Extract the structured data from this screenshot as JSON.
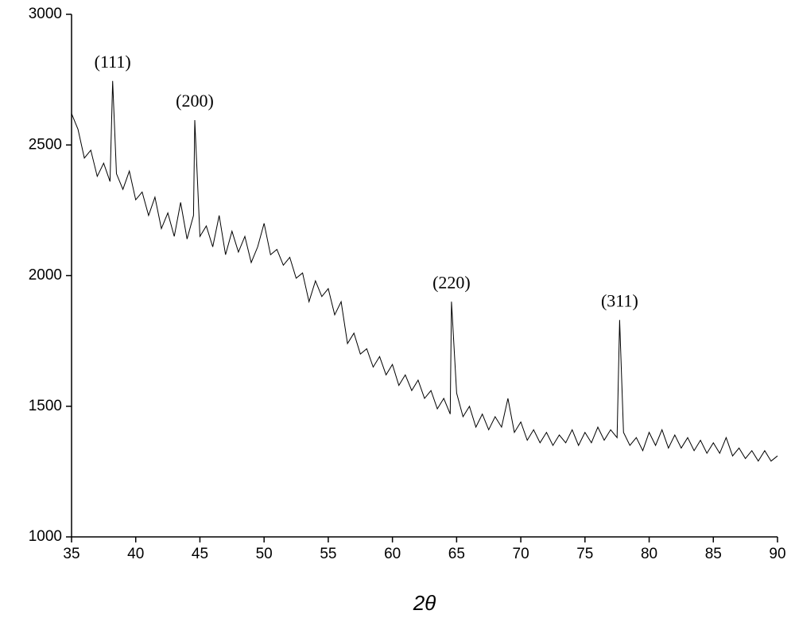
{
  "chart_data": {
    "type": "line",
    "x_label": "2θ",
    "color": "#000000",
    "x": [
      35,
      35.5,
      36,
      36.5,
      37,
      37.5,
      38,
      38.2,
      38.5,
      39,
      39.5,
      40,
      40.5,
      41,
      41.5,
      42,
      42.5,
      43,
      43.5,
      44,
      44.5,
      44.6,
      45,
      45.5,
      46,
      46.5,
      47,
      47.5,
      48,
      48.5,
      49,
      49.5,
      50,
      50.5,
      51,
      51.5,
      52,
      52.5,
      53,
      53.5,
      54,
      54.5,
      55,
      55.5,
      56,
      56.5,
      57,
      57.5,
      58,
      58.5,
      59,
      59.5,
      60,
      60.5,
      61,
      61.5,
      62,
      62.5,
      63,
      63.5,
      64,
      64.5,
      64.6,
      65,
      65.5,
      66,
      66.5,
      67,
      67.5,
      68,
      68.5,
      69,
      69.5,
      70,
      70.5,
      71,
      71.5,
      72,
      72.5,
      73,
      73.5,
      74,
      74.5,
      75,
      75.5,
      76,
      76.5,
      77,
      77.5,
      77.7,
      78,
      78.5,
      79,
      79.5,
      80,
      80.5,
      81,
      81.5,
      82,
      82.5,
      83,
      83.5,
      84,
      84.5,
      85,
      85.5,
      86,
      86.5,
      87,
      87.5,
      88,
      88.5,
      89,
      89.5,
      90
    ],
    "values": [
      2620,
      2560,
      2450,
      2480,
      2380,
      2430,
      2360,
      2745,
      2390,
      2330,
      2400,
      2290,
      2320,
      2230,
      2300,
      2180,
      2240,
      2150,
      2280,
      2140,
      2230,
      2595,
      2150,
      2190,
      2110,
      2230,
      2080,
      2170,
      2090,
      2150,
      2050,
      2110,
      2200,
      2080,
      2100,
      2040,
      2070,
      1990,
      2010,
      1900,
      1980,
      1920,
      1950,
      1850,
      1900,
      1740,
      1780,
      1700,
      1720,
      1650,
      1690,
      1620,
      1660,
      1580,
      1620,
      1560,
      1600,
      1530,
      1560,
      1490,
      1530,
      1470,
      1900,
      1550,
      1460,
      1500,
      1420,
      1470,
      1410,
      1460,
      1420,
      1530,
      1400,
      1440,
      1370,
      1410,
      1360,
      1400,
      1350,
      1390,
      1360,
      1410,
      1350,
      1400,
      1360,
      1420,
      1370,
      1410,
      1380,
      1830,
      1400,
      1350,
      1380,
      1330,
      1400,
      1350,
      1410,
      1340,
      1390,
      1340,
      1380,
      1330,
      1370,
      1320,
      1360,
      1320,
      1380,
      1310,
      1340,
      1300,
      1330,
      1290,
      1330,
      1290,
      1310
    ],
    "annotations": [
      {
        "text": "(111)",
        "x": 38.2
      },
      {
        "text": "(200)",
        "x": 44.6
      },
      {
        "text": "(220)",
        "x": 64.6
      },
      {
        "text": "(311)",
        "x": 77.7
      }
    ],
    "xlim": [
      35,
      90
    ],
    "xticks": [
      35,
      40,
      45,
      50,
      55,
      60,
      65,
      70,
      75,
      80,
      85,
      90
    ],
    "ylim": [
      1000,
      3000
    ],
    "yticks": [
      1000,
      1500,
      2000,
      2500,
      3000
    ]
  }
}
